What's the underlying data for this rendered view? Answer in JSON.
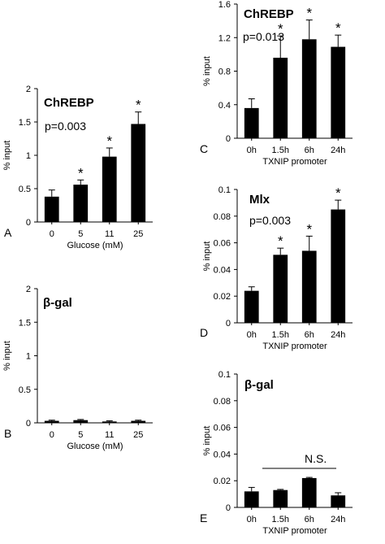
{
  "chart_data": [
    {
      "type": "bar",
      "panel_letter": "A",
      "categories": [
        "0",
        "5",
        "11",
        "25"
      ],
      "values": [
        0.38,
        0.56,
        0.98,
        1.47
      ],
      "errors": [
        0.1,
        0.07,
        0.13,
        0.18
      ],
      "significance": [
        "",
        "*",
        "*",
        "*"
      ],
      "title": "ChREBP",
      "annotation": "p=0.003",
      "xlabel": "Glucose (mM)",
      "ylabel": "% input",
      "ylim": [
        0,
        2
      ],
      "yticks": [
        0,
        0.5,
        1,
        1.5,
        2
      ],
      "ytick_labels": [
        "0",
        "0.5",
        "1",
        "1.5",
        "2"
      ]
    },
    {
      "type": "bar",
      "panel_letter": "B",
      "categories": [
        "0",
        "5",
        "11",
        "25"
      ],
      "values": [
        0.03,
        0.04,
        0.02,
        0.03
      ],
      "errors": [
        0.01,
        0.01,
        0.01,
        0.01
      ],
      "significance": [
        "",
        "",
        "",
        ""
      ],
      "title": "β-gal",
      "annotation": "",
      "xlabel": "Glucose (mM)",
      "ylabel": "% input",
      "ylim": [
        0,
        2
      ],
      "yticks": [
        0,
        0.5,
        1,
        1.5,
        2
      ],
      "ytick_labels": [
        "0",
        "0.5",
        "1",
        "1.5",
        "2"
      ]
    },
    {
      "type": "bar",
      "panel_letter": "C",
      "categories": [
        "0h",
        "1.5h",
        "6h",
        "24h"
      ],
      "values": [
        0.36,
        0.96,
        1.18,
        1.09
      ],
      "errors": [
        0.11,
        0.26,
        0.23,
        0.14
      ],
      "significance": [
        "",
        "*",
        "*",
        "*"
      ],
      "title": "ChREBP",
      "annotation": "p=0.013",
      "xlabel": "TXNIP promoter",
      "ylabel": "% input",
      "ylim": [
        0,
        1.6
      ],
      "yticks": [
        0,
        0.4,
        0.8,
        1.2,
        1.6
      ],
      "ytick_labels": [
        "0",
        "0.4",
        "0.8",
        "1.2",
        "1.6"
      ]
    },
    {
      "type": "bar",
      "panel_letter": "D",
      "categories": [
        "0h",
        "1.5h",
        "6h",
        "24h"
      ],
      "values": [
        0.024,
        0.051,
        0.054,
        0.085
      ],
      "errors": [
        0.003,
        0.005,
        0.011,
        0.007
      ],
      "significance": [
        "",
        "*",
        "*",
        "*"
      ],
      "title": "Mlx",
      "annotation": "p=0.003",
      "xlabel": "TXNIP promoter",
      "ylabel": "% input",
      "ylim": [
        0,
        0.1
      ],
      "yticks": [
        0,
        0.02,
        0.04,
        0.06,
        0.08,
        0.1
      ],
      "ytick_labels": [
        "0",
        "0.02",
        "0.04",
        "0.06",
        "0.08",
        "0.1"
      ]
    },
    {
      "type": "bar",
      "panel_letter": "E",
      "categories": [
        "0h",
        "1.5h",
        "6h",
        "24h"
      ],
      "values": [
        0.012,
        0.013,
        0.022,
        0.009
      ],
      "errors": [
        0.003,
        0.0005,
        0.0005,
        0.002
      ],
      "significance": [
        "",
        "",
        "",
        ""
      ],
      "title": "β-gal",
      "annotation": "N.S.",
      "xlabel": "TXNIP promoter",
      "ylabel": "% input",
      "ylim": [
        0,
        0.1
      ],
      "yticks": [
        0,
        0.02,
        0.04,
        0.06,
        0.08,
        0.1
      ],
      "ytick_labels": [
        "0",
        "0.02",
        "0.04",
        "0.06",
        "0.08",
        "0.1"
      ]
    }
  ]
}
